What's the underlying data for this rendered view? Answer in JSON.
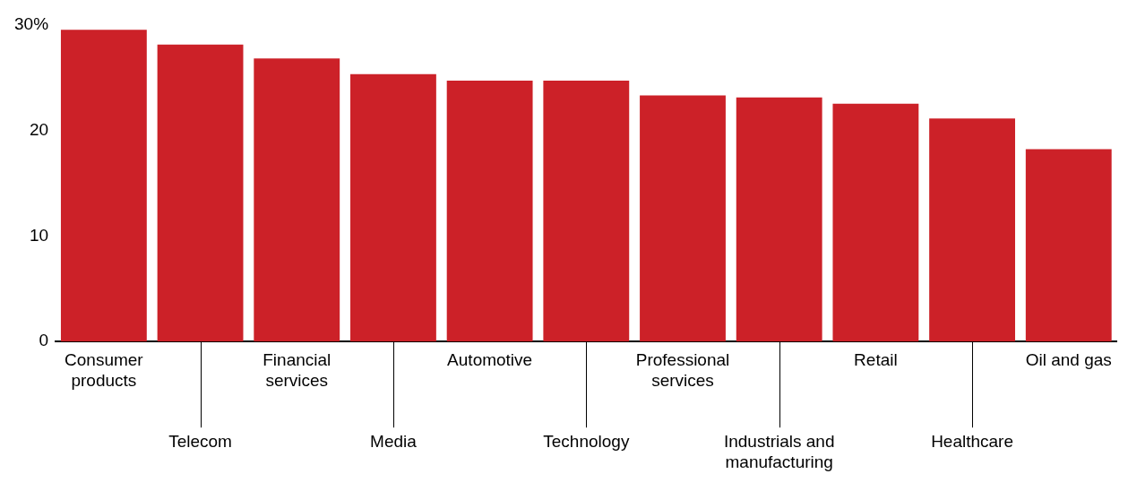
{
  "chart_data": {
    "type": "bar",
    "categories": [
      "Consumer products",
      "Telecom",
      "Financial services",
      "Media",
      "Automotive",
      "Technology",
      "Professional services",
      "Industrials and manufacturing",
      "Retail",
      "Healthcare",
      "Oil and gas"
    ],
    "values": [
      29.5,
      28.1,
      26.8,
      25.3,
      24.7,
      24.7,
      23.3,
      23.1,
      22.5,
      21.1,
      18.2
    ],
    "color": "#cc2128",
    "ylim": [
      0,
      30
    ],
    "yticks": [
      0,
      10,
      20,
      {
        "value": 30,
        "label": "30%"
      }
    ],
    "grid": false,
    "legend": false
  }
}
